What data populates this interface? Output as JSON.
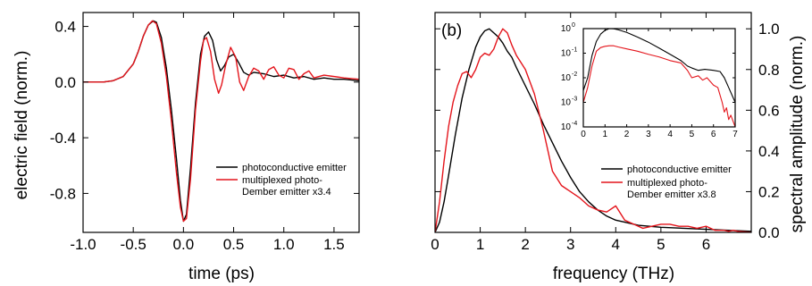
{
  "chart_data": [
    {
      "type": "line",
      "panel_label": "",
      "xlabel": "time (ps)",
      "ylabel": "electric field (norm.)",
      "xlim": [
        -1.0,
        1.75
      ],
      "ylim": [
        -1.08,
        0.5
      ],
      "xticks": [
        -1.0,
        -0.5,
        0.0,
        0.5,
        1.0,
        1.5
      ],
      "xtick_labels": [
        "-1.0",
        "-0.5",
        "0.0",
        "0.5",
        "1.0",
        "1.5"
      ],
      "yticks": [
        0.4,
        0.0,
        -0.4,
        -0.8
      ],
      "ytick_labels": [
        "0.4",
        "0.0",
        "-0.4",
        "-0.8"
      ],
      "grid": false,
      "legend_position": "lower-right",
      "series": [
        {
          "name": "photoconductive emitter",
          "color": "#000000",
          "x": [
            -1.0,
            -0.8,
            -0.7,
            -0.6,
            -0.5,
            -0.45,
            -0.4,
            -0.35,
            -0.3,
            -0.27,
            -0.22,
            -0.17,
            -0.12,
            -0.07,
            -0.03,
            0.0,
            0.03,
            0.07,
            0.12,
            0.17,
            0.21,
            0.25,
            0.29,
            0.33,
            0.37,
            0.41,
            0.45,
            0.5,
            0.55,
            0.6,
            0.65,
            0.7,
            0.8,
            0.9,
            1.0,
            1.1,
            1.2,
            1.3,
            1.4,
            1.5,
            1.6,
            1.75
          ],
          "y": [
            0.0,
            0.0,
            0.01,
            0.04,
            0.13,
            0.22,
            0.33,
            0.41,
            0.44,
            0.43,
            0.32,
            0.1,
            -0.2,
            -0.55,
            -0.85,
            -1.0,
            -0.95,
            -0.62,
            -0.15,
            0.2,
            0.33,
            0.36,
            0.3,
            0.16,
            0.08,
            0.12,
            0.18,
            0.2,
            0.14,
            0.07,
            0.05,
            0.07,
            0.06,
            0.04,
            0.05,
            0.03,
            0.04,
            0.02,
            0.03,
            0.02,
            0.02,
            0.01
          ]
        },
        {
          "name": "multiplexed photo-Dember emitter x3.4",
          "color": "#e4141b",
          "x": [
            -1.0,
            -0.8,
            -0.7,
            -0.6,
            -0.5,
            -0.45,
            -0.4,
            -0.35,
            -0.31,
            -0.27,
            -0.22,
            -0.17,
            -0.12,
            -0.07,
            -0.03,
            0.0,
            0.03,
            0.07,
            0.12,
            0.17,
            0.2,
            0.23,
            0.27,
            0.31,
            0.35,
            0.38,
            0.42,
            0.47,
            0.52,
            0.56,
            0.6,
            0.65,
            0.7,
            0.75,
            0.8,
            0.85,
            0.9,
            0.95,
            1.0,
            1.05,
            1.1,
            1.15,
            1.2,
            1.25,
            1.3,
            1.4,
            1.5,
            1.6,
            1.75
          ],
          "y": [
            0.0,
            0.0,
            0.01,
            0.04,
            0.13,
            0.22,
            0.33,
            0.41,
            0.44,
            0.42,
            0.28,
            0.04,
            -0.28,
            -0.65,
            -0.9,
            -1.0,
            -0.98,
            -0.7,
            -0.2,
            0.15,
            0.3,
            0.32,
            0.22,
            0.02,
            -0.08,
            -0.02,
            0.12,
            0.25,
            0.18,
            0.0,
            -0.06,
            0.04,
            0.1,
            0.08,
            0.02,
            0.09,
            0.11,
            0.05,
            0.03,
            0.1,
            0.09,
            0.02,
            0.06,
            0.08,
            0.03,
            0.05,
            0.04,
            0.03,
            0.02
          ]
        }
      ],
      "legend_entries": [
        "photoconductive emitter",
        "multiplexed photo-",
        "Dember emitter x3.4"
      ]
    },
    {
      "type": "line",
      "panel_label": "(b)",
      "xlabel": "frequency (THz)",
      "ylabel": "spectral amplitude (norm.)",
      "xlim": [
        0,
        7
      ],
      "ylim": [
        0,
        1.08
      ],
      "xticks": [
        0,
        1,
        2,
        3,
        4,
        5,
        6
      ],
      "xtick_labels": [
        "0",
        "1",
        "2",
        "3",
        "4",
        "5",
        "6"
      ],
      "yticks": [
        0.0,
        0.2,
        0.4,
        0.6,
        0.8,
        1.0
      ],
      "ytick_labels": [
        "0.0",
        "0.2",
        "0.4",
        "0.6",
        "0.8",
        "1.0"
      ],
      "grid": false,
      "legend_position": "center-right",
      "series": [
        {
          "name": "photoconductive emitter",
          "color": "#000000",
          "x": [
            0.0,
            0.1,
            0.2,
            0.3,
            0.45,
            0.6,
            0.75,
            0.9,
            1.0,
            1.1,
            1.2,
            1.3,
            1.4,
            1.5,
            1.6,
            1.7,
            1.8,
            2.0,
            2.2,
            2.4,
            2.6,
            2.8,
            3.0,
            3.2,
            3.4,
            3.6,
            3.8,
            4.0,
            4.2,
            4.5,
            5.0,
            5.5,
            6.0,
            6.5,
            7.0
          ],
          "y": [
            0.0,
            0.05,
            0.15,
            0.28,
            0.48,
            0.66,
            0.8,
            0.91,
            0.96,
            0.99,
            1.0,
            0.98,
            0.96,
            0.93,
            0.89,
            0.86,
            0.81,
            0.72,
            0.63,
            0.53,
            0.44,
            0.35,
            0.27,
            0.2,
            0.15,
            0.11,
            0.08,
            0.06,
            0.05,
            0.035,
            0.025,
            0.02,
            0.015,
            0.01,
            0.005
          ]
        },
        {
          "name": "multiplexed photo-Dember emitter x3.8",
          "color": "#e4141b",
          "x": [
            0.0,
            0.1,
            0.2,
            0.3,
            0.4,
            0.5,
            0.6,
            0.7,
            0.8,
            0.9,
            1.0,
            1.1,
            1.2,
            1.3,
            1.4,
            1.5,
            1.6,
            1.7,
            1.8,
            2.0,
            2.2,
            2.4,
            2.6,
            2.8,
            3.0,
            3.2,
            3.4,
            3.6,
            3.8,
            4.0,
            4.2,
            4.4,
            4.6,
            4.8,
            5.0,
            5.2,
            5.4,
            5.6,
            5.8,
            6.0,
            6.2,
            6.4,
            6.5,
            6.6,
            6.7,
            7.0
          ],
          "y": [
            0.0,
            0.15,
            0.35,
            0.52,
            0.64,
            0.72,
            0.78,
            0.79,
            0.76,
            0.8,
            0.86,
            0.88,
            0.87,
            0.9,
            0.96,
            1.0,
            0.98,
            0.92,
            0.87,
            0.8,
            0.68,
            0.5,
            0.3,
            0.23,
            0.2,
            0.17,
            0.13,
            0.11,
            0.1,
            0.13,
            0.06,
            0.04,
            0.02,
            0.03,
            0.04,
            0.04,
            0.03,
            0.03,
            0.02,
            0.03,
            0.01,
            0.01,
            0.005,
            0.01,
            0.005,
            0.0
          ]
        }
      ],
      "legend_entries": [
        "photoconductive emitter",
        "multiplexed photo-",
        "Dember emitter x3.8"
      ],
      "inset": {
        "type": "line",
        "xlim": [
          0,
          7
        ],
        "xticks": [
          0,
          1,
          2,
          3,
          4,
          5,
          6,
          7
        ],
        "xtick_labels": [
          "0",
          "1",
          "2",
          "3",
          "4",
          "5",
          "6",
          "7"
        ],
        "yscale": "log",
        "ylim": [
          0.0001,
          1
        ],
        "yticks": [
          1,
          0.1,
          0.01,
          0.001,
          0.0001
        ],
        "ytick_bases": [
          "10",
          "10",
          "10",
          "10",
          "10"
        ],
        "ytick_exponents": [
          "0",
          "-1",
          "-2",
          "-3",
          "-4"
        ],
        "series": [
          {
            "name": "photoconductive emitter",
            "color": "#000000",
            "x": [
              0.0,
              0.2,
              0.4,
              0.6,
              0.8,
              1.0,
              1.2,
              1.4,
              1.6,
              2.0,
              2.5,
              3.0,
              3.5,
              4.0,
              4.5,
              4.8,
              5.0,
              5.3,
              5.6,
              6.0,
              6.3,
              6.5,
              6.7,
              7.0
            ],
            "y": [
              0.003,
              0.01,
              0.08,
              0.3,
              0.6,
              0.85,
              1.0,
              0.98,
              0.9,
              0.7,
              0.45,
              0.28,
              0.16,
              0.09,
              0.05,
              0.03,
              0.025,
              0.02,
              0.022,
              0.02,
              0.018,
              0.01,
              0.004,
              0.001
            ]
          },
          {
            "name": "multiplexed photo-Dember emitter x3.8",
            "color": "#e4141b",
            "x": [
              0.0,
              0.2,
              0.4,
              0.6,
              0.8,
              1.0,
              1.2,
              1.4,
              1.6,
              2.0,
              2.5,
              3.0,
              3.5,
              4.0,
              4.5,
              4.8,
              5.0,
              5.3,
              5.5,
              5.7,
              6.0,
              6.2,
              6.4,
              6.5,
              6.6,
              6.7,
              6.8,
              7.0
            ],
            "y": [
              0.001,
              0.004,
              0.03,
              0.12,
              0.17,
              0.19,
              0.2,
              0.2,
              0.18,
              0.15,
              0.12,
              0.09,
              0.07,
              0.05,
              0.04,
              0.02,
              0.01,
              0.012,
              0.008,
              0.01,
              0.005,
              0.004,
              0.001,
              0.0004,
              0.0006,
              0.0002,
              0.0003,
              0.0001
            ]
          }
        ]
      }
    }
  ]
}
